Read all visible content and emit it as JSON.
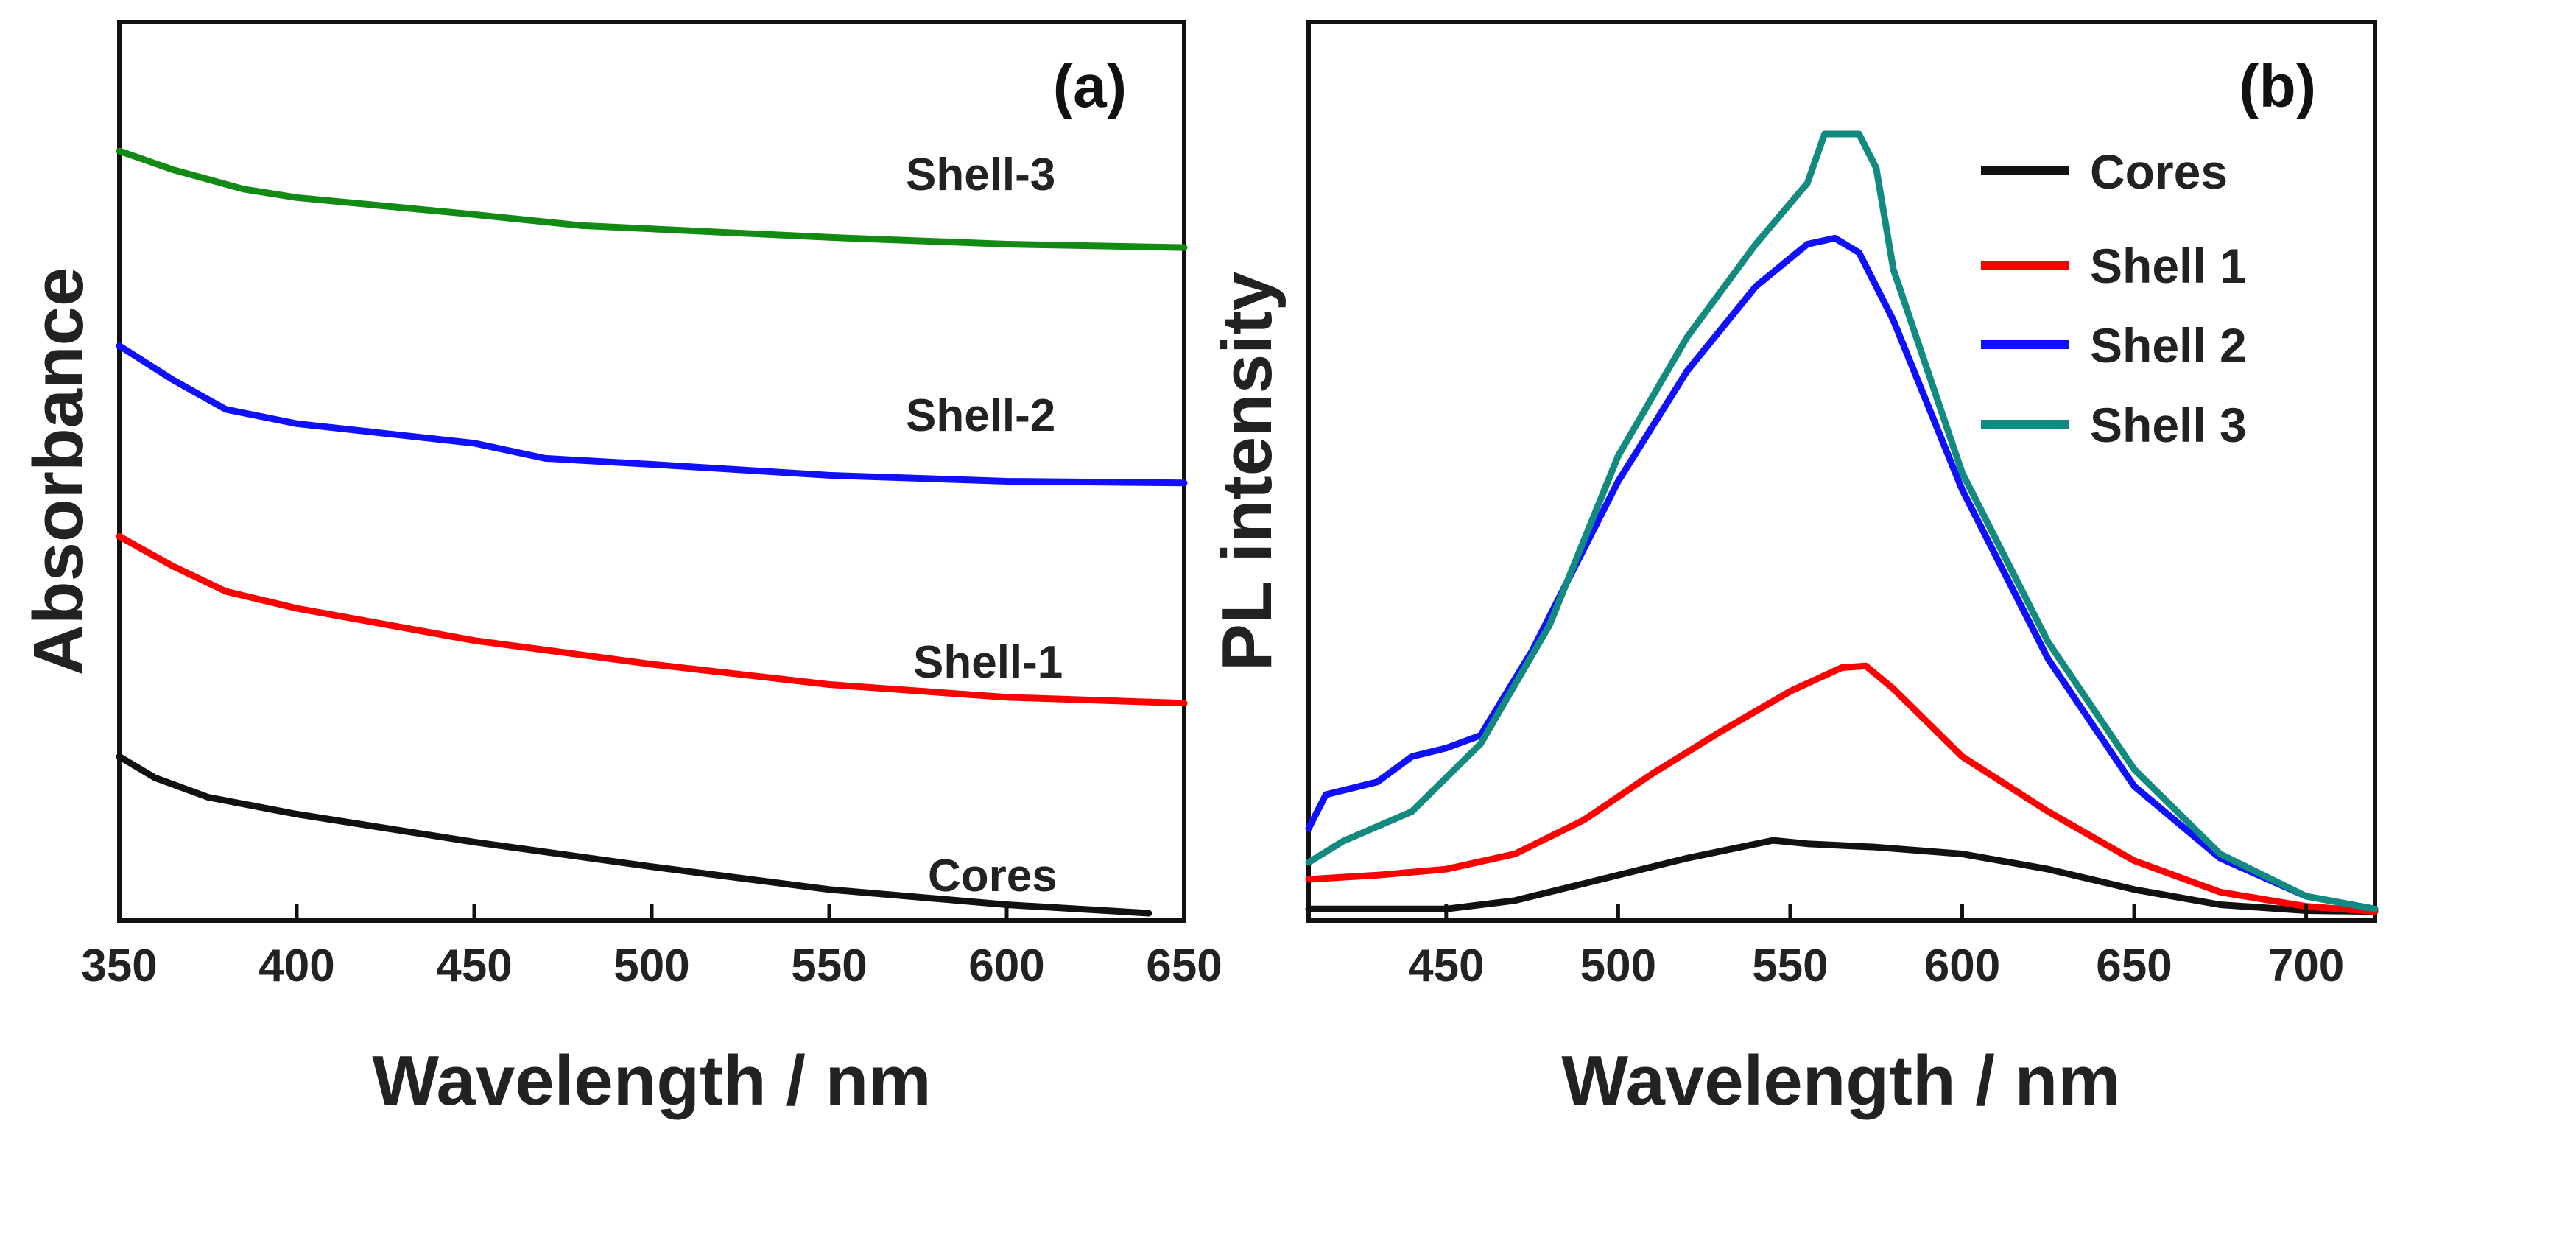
{
  "chart_data": [
    {
      "panel": "(a)",
      "type": "line",
      "xlabel": "Wavelength / nm",
      "ylabel": "Absorbance",
      "xlim": [
        350,
        650
      ],
      "ylim": [
        0,
        1.0
      ],
      "x_ticks": [
        350,
        400,
        450,
        500,
        550,
        600,
        650
      ],
      "y_ticks_shown": false,
      "series": [
        {
          "name": "Cores",
          "color": "#111111",
          "x": [
            350,
            360,
            375,
            400,
            450,
            500,
            550,
            600,
            640
          ],
          "y": [
            0.185,
            0.16,
            0.137,
            0.117,
            0.084,
            0.055,
            0.028,
            0.01,
            0.0
          ]
        },
        {
          "name": "Shell-1",
          "color": "#ff0000",
          "x": [
            350,
            365,
            380,
            400,
            450,
            500,
            550,
            600,
            650
          ],
          "y": [
            0.445,
            0.41,
            0.38,
            0.36,
            0.322,
            0.294,
            0.27,
            0.255,
            0.248
          ]
        },
        {
          "name": "Shell-2",
          "color": "#1010ff",
          "x": [
            350,
            365,
            380,
            400,
            450,
            470,
            500,
            550,
            600,
            650
          ],
          "y": [
            0.67,
            0.63,
            0.595,
            0.578,
            0.555,
            0.537,
            0.53,
            0.517,
            0.51,
            0.508
          ]
        },
        {
          "name": "Shell-3",
          "color": "#138a13",
          "x": [
            350,
            365,
            385,
            400,
            450,
            480,
            500,
            550,
            600,
            650
          ],
          "y": [
            0.9,
            0.878,
            0.855,
            0.845,
            0.825,
            0.812,
            0.808,
            0.798,
            0.79,
            0.786
          ]
        }
      ],
      "curve_labels": [
        "Shell-3",
        "Shell-2",
        "Shell-1",
        "Cores"
      ]
    },
    {
      "panel": "(b)",
      "type": "line",
      "xlabel": "Wavelength / nm",
      "ylabel": "PL intensity",
      "xlim": [
        410,
        720
      ],
      "ylim": [
        0,
        1.0
      ],
      "x_ticks": [
        450,
        500,
        550,
        600,
        650,
        700
      ],
      "y_ticks_shown": false,
      "legend": {
        "position": "top-right",
        "entries": [
          "Cores",
          "Shell 1",
          "Shell 2",
          "Shell 3"
        ]
      },
      "series": [
        {
          "name": "Cores",
          "color": "#111111",
          "x": [
            410,
            450,
            470,
            500,
            520,
            545,
            555,
            575,
            600,
            625,
            650,
            675,
            700,
            720
          ],
          "y": [
            0.005,
            0.005,
            0.015,
            0.045,
            0.065,
            0.086,
            0.082,
            0.078,
            0.07,
            0.052,
            0.028,
            0.01,
            0.003,
            0.002
          ]
        },
        {
          "name": "Shell 1",
          "color": "#ff0000",
          "x": [
            410,
            430,
            450,
            470,
            490,
            510,
            530,
            550,
            565,
            572,
            580,
            600,
            625,
            650,
            675,
            700,
            720
          ],
          "y": [
            0.04,
            0.045,
            0.052,
            0.07,
            0.11,
            0.165,
            0.215,
            0.262,
            0.29,
            0.292,
            0.265,
            0.185,
            0.12,
            0.062,
            0.025,
            0.008,
            0.002
          ]
        },
        {
          "name": "Shell 2",
          "color": "#1010ff",
          "x": [
            410,
            415,
            430,
            440,
            450,
            460,
            475,
            500,
            520,
            540,
            555,
            563,
            570,
            580,
            600,
            625,
            650,
            675,
            700,
            720
          ],
          "y": [
            0.1,
            0.14,
            0.155,
            0.185,
            0.195,
            0.21,
            0.31,
            0.51,
            0.64,
            0.74,
            0.79,
            0.797,
            0.78,
            0.7,
            0.5,
            0.3,
            0.15,
            0.065,
            0.02,
            0.005
          ]
        },
        {
          "name": "Shell 3",
          "color": "#128a7f",
          "x": [
            410,
            420,
            440,
            460,
            480,
            500,
            520,
            540,
            555,
            560,
            570,
            575,
            580,
            600,
            625,
            650,
            675,
            700,
            720
          ],
          "y": [
            0.06,
            0.085,
            0.12,
            0.2,
            0.34,
            0.54,
            0.68,
            0.79,
            0.862,
            0.92,
            0.92,
            0.88,
            0.76,
            0.52,
            0.32,
            0.17,
            0.07,
            0.02,
            0.005
          ]
        }
      ]
    }
  ]
}
